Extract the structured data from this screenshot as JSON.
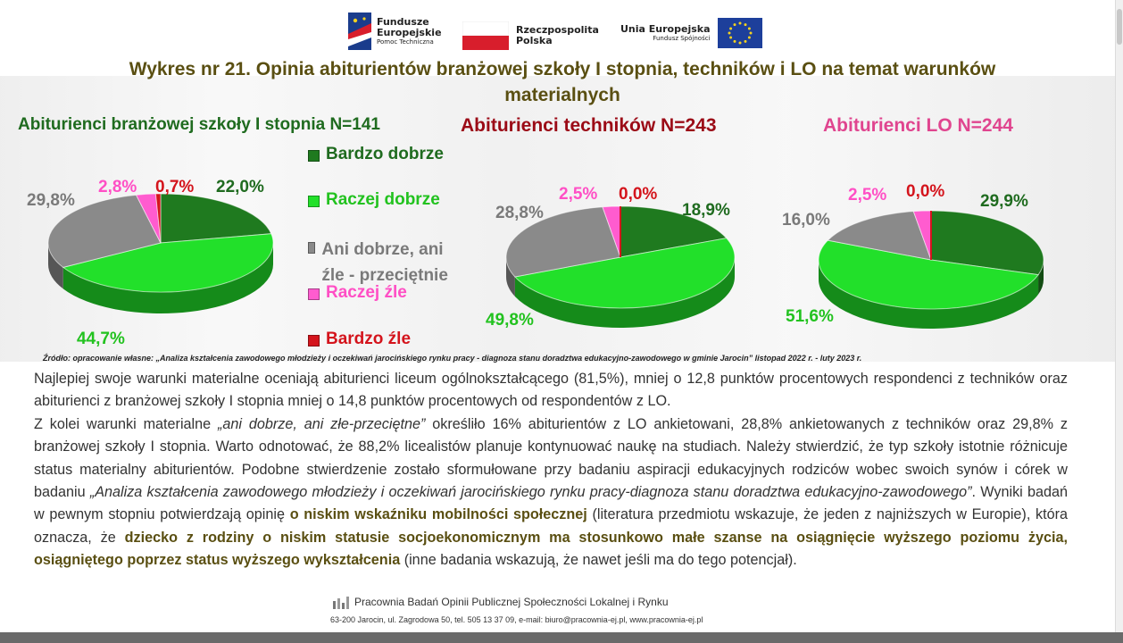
{
  "header": {
    "logos": [
      {
        "name": "Fundusze Europejskie",
        "lines": [
          "Fundusze",
          "Europejskie"
        ],
        "sub": "Pomoc Techniczna"
      },
      {
        "name": "Rzeczpospolita Polska",
        "lines": [
          "Rzeczpospolita",
          "Polska"
        ]
      },
      {
        "name": "Unia Europejska",
        "lines": [
          "Unia Europejska"
        ],
        "sub": "Fundusz Spójności"
      }
    ]
  },
  "title": "Wykres nr 21. Opinia abiturientów branżowej szkoły I stopnia, techników i LO na temat warunków materialnych",
  "legend": [
    {
      "label": "Bardzo dobrze",
      "color": "#1f7a1f"
    },
    {
      "label": "Raczej dobrze",
      "color": "#22e02a"
    },
    {
      "label": "Ani dobrze, ani źle - przeciętnie",
      "color": "#8a8a8a"
    },
    {
      "label": "Raczej źle",
      "color": "#ff5ccf"
    },
    {
      "label": "Bardzo źle",
      "color": "#d4141c"
    }
  ],
  "chart_data": [
    {
      "type": "pie",
      "title": "Abiturienci branżowej szkoły I stopnia N=141",
      "title_color": "#1f6b1f",
      "categories": [
        "Bardzo dobrze",
        "Raczej dobrze",
        "Ani dobrze, ani źle - przeciętnie",
        "Raczej źle",
        "Bardzo źle"
      ],
      "values": [
        22.0,
        44.7,
        29.8,
        2.8,
        0.7
      ],
      "labels": [
        "22,0%",
        "44,7%",
        "29,8%",
        "2,8%",
        "0,7%"
      ]
    },
    {
      "type": "pie",
      "title": "Abiturienci techników  N=243",
      "title_color": "#9b0a16",
      "categories": [
        "Bardzo dobrze",
        "Raczej dobrze",
        "Ani dobrze, ani źle - przeciętnie",
        "Raczej źle",
        "Bardzo źle"
      ],
      "values": [
        18.9,
        49.8,
        28.8,
        2.5,
        0.0
      ],
      "labels": [
        "18,9%",
        "49,8%",
        "28,8%",
        "2,5%",
        "0,0%"
      ]
    },
    {
      "type": "pie",
      "title": "Abiturienci LO  N=244",
      "title_color": "#e0458f",
      "categories": [
        "Bardzo dobrze",
        "Raczej dobrze",
        "Ani dobrze, ani źle - przeciętnie",
        "Raczej źle",
        "Bardzo źle"
      ],
      "values": [
        29.9,
        51.6,
        16.0,
        2.5,
        0.0
      ],
      "labels": [
        "29,9%",
        "51,6%",
        "16,0%",
        "2,5%",
        "0,0%"
      ]
    }
  ],
  "colors": {
    "label_colors": [
      "#1f6b1f",
      "#22c21f",
      "#7a7a7a",
      "#ff4fc5",
      "#d4141c"
    ]
  },
  "source": "Źródło: opracowanie własne: „Analiza kształcenia zawodowego młodzieży i oczekiwań jarocińskiego rynku pracy - diagnoza stanu doradztwa edukacyjno-zawodowego w gminie Jarocin” listopad 2022 r. - luty 2023 r.",
  "body": {
    "p1": "Najlepiej swoje warunki materialne oceniają abiturienci liceum ogólnokształcącego (81,5%), mniej o 12,8 punktów procentowych respondenci z techników oraz abiturienci z branżowej szkoły I stopnia mniej o 14,8 punktów procentowych od respondentów z LO.",
    "p2a": "Z kolei warunki materialne ",
    "p2b": "„ani dobrze, ani złe-przeciętne”",
    "p2c": " określiło 16% abiturientów z LO ankietowani, 28,8% ankietowanych z techników oraz 29,8% z branżowej szkoły I stopnia. Warto odnotować, że 88,2% licealistów planuje kontynuować naukę na studiach. Należy stwierdzić, że typ szkoły istotnie różnicuje status materialny abiturientów. Podobne stwierdzenie zostało sformułowane przy badaniu aspiracji edukacyjnych rodziców wobec swoich synów i córek w badaniu ",
    "p2d": "„Analiza kształcenia zawodowego młodzieży i oczekiwań jarocińskiego rynku pracy-diagnoza stanu doradztwa edukacyjno-zawodowego”",
    "p2e": ". Wyniki badań w pewnym stopniu potwierdzają opinię ",
    "p2f": "o niskim wskaźniku mobilności społecznej",
    "p2g": " (literatura przedmiotu wskazuje, że jeden z najniższych w Europie), która oznacza, że ",
    "p2h": "dziecko z rodziny o niskim statusie socjoekonomicznym ma stosunkowo małe szanse na osiągnięcie wyższego poziomu życia, osiągniętego poprzez status wyższego wykształcenia",
    "p2i": " (inne badania wskazują, że nawet jeśli ma do tego potencjał)."
  },
  "footer": {
    "org": "Pracownia Badań Opinii Publicznej Społeczności Lokalnej i Rynku",
    "address": "63-200 Jarocin, ul. Zagrodowa 50, tel. 505 13 37 09, e-mail: biuro@pracownia-ej.pl, www.pracownia-ej.pl"
  }
}
